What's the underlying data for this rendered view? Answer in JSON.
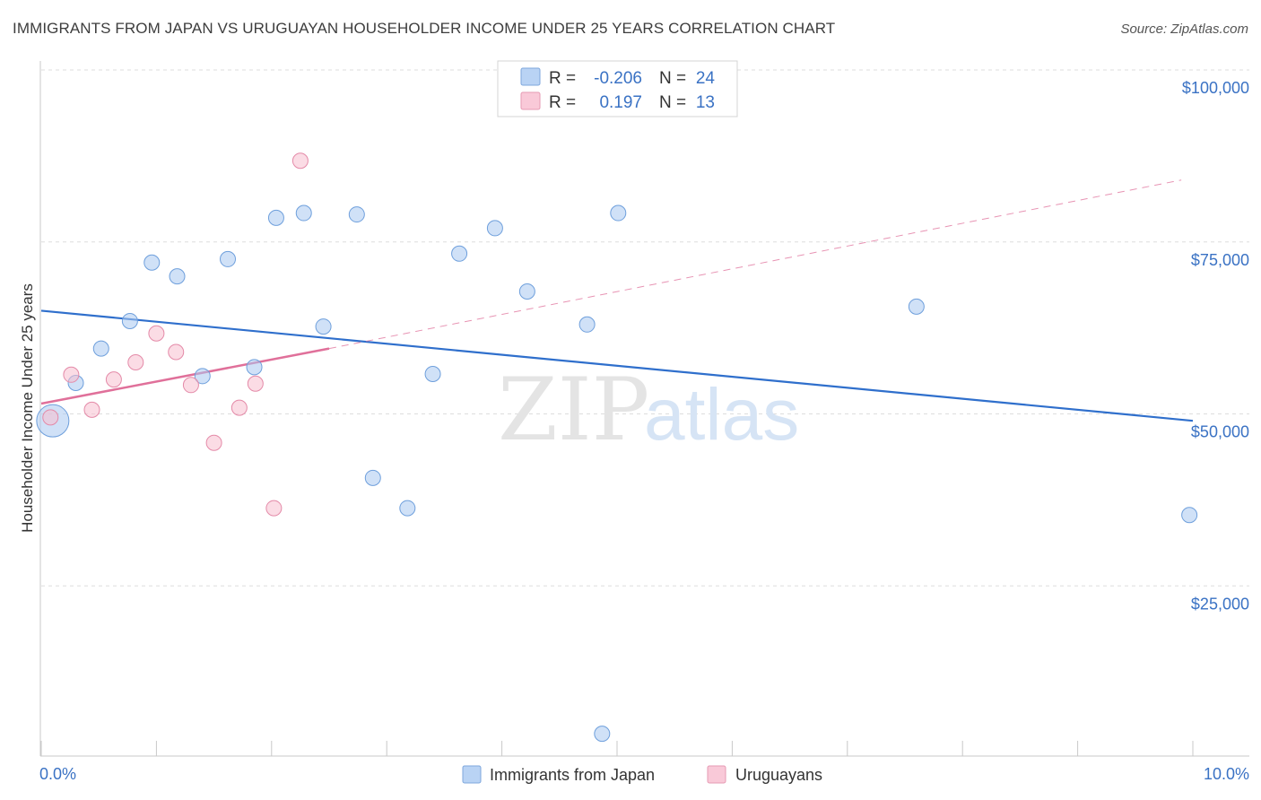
{
  "chart_data": {
    "type": "scatter",
    "title": "IMMIGRANTS FROM JAPAN VS URUGUAYAN HOUSEHOLDER INCOME UNDER 25 YEARS CORRELATION CHART",
    "source": "Source: ZipAtlas.com",
    "ylabel": "Householder Income Under 25 years",
    "xlim": [
      0,
      10
    ],
    "ylim": [
      0,
      105000
    ],
    "x_tick_labels": [
      "0.0%",
      "10.0%"
    ],
    "y_ticks": [
      {
        "value": 25000,
        "label": "$25,000"
      },
      {
        "value": 50000,
        "label": "$50,000"
      },
      {
        "value": 75000,
        "label": "$75,000"
      },
      {
        "value": 100000,
        "label": "$100,000"
      }
    ],
    "watermark": {
      "zip": "ZIP",
      "atlas": "atlas"
    },
    "legend": {
      "r_label": "R =",
      "n_label": "N =",
      "entries": [
        {
          "r": "-0.206",
          "n": "24"
        },
        {
          "r": "0.197",
          "n": "13"
        }
      ]
    },
    "series": [
      {
        "name": "Immigrants from Japan",
        "color": "#a9c8f0",
        "stroke": "#6e9fdc",
        "line_color": "#2f6fcc",
        "trend": {
          "x0": 0,
          "y0": 65000,
          "x1": 10,
          "y1": 49000
        },
        "points": [
          {
            "x": 0.1,
            "y": 49000,
            "big": true
          },
          {
            "x": 0.3,
            "y": 54500
          },
          {
            "x": 0.52,
            "y": 59500
          },
          {
            "x": 0.77,
            "y": 63500
          },
          {
            "x": 0.96,
            "y": 72000
          },
          {
            "x": 1.18,
            "y": 70000
          },
          {
            "x": 1.4,
            "y": 55500
          },
          {
            "x": 1.62,
            "y": 72500
          },
          {
            "x": 1.85,
            "y": 56800
          },
          {
            "x": 2.04,
            "y": 78500
          },
          {
            "x": 2.28,
            "y": 79200
          },
          {
            "x": 2.45,
            "y": 62700
          },
          {
            "x": 2.74,
            "y": 79000
          },
          {
            "x": 2.88,
            "y": 40700
          },
          {
            "x": 3.18,
            "y": 36300
          },
          {
            "x": 3.4,
            "y": 55800
          },
          {
            "x": 3.63,
            "y": 73300
          },
          {
            "x": 3.94,
            "y": 77000
          },
          {
            "x": 4.22,
            "y": 67800
          },
          {
            "x": 4.74,
            "y": 63000
          },
          {
            "x": 4.87,
            "y": 3500
          },
          {
            "x": 5.01,
            "y": 79200
          },
          {
            "x": 7.6,
            "y": 65600
          },
          {
            "x": 9.97,
            "y": 35300
          }
        ]
      },
      {
        "name": "Uruguayans",
        "color": "#f7bfd0",
        "stroke": "#e48aa8",
        "line_color": "#e0709a",
        "trend": {
          "x0": 0,
          "y0": 51500,
          "x1": 2.5,
          "y1": 59500
        },
        "trend_ext": {
          "x0": 2.5,
          "y0": 59500,
          "x1": 9.9,
          "y1": 84000
        },
        "points": [
          {
            "x": 0.08,
            "y": 49500
          },
          {
            "x": 0.26,
            "y": 55700
          },
          {
            "x": 0.44,
            "y": 50600
          },
          {
            "x": 0.63,
            "y": 55000
          },
          {
            "x": 0.82,
            "y": 57500
          },
          {
            "x": 1.0,
            "y": 61700
          },
          {
            "x": 1.17,
            "y": 59000
          },
          {
            "x": 1.3,
            "y": 54200
          },
          {
            "x": 1.5,
            "y": 45800
          },
          {
            "x": 1.72,
            "y": 50900
          },
          {
            "x": 1.86,
            "y": 54400
          },
          {
            "x": 2.02,
            "y": 36300
          },
          {
            "x": 2.25,
            "y": 86800
          }
        ]
      }
    ]
  }
}
